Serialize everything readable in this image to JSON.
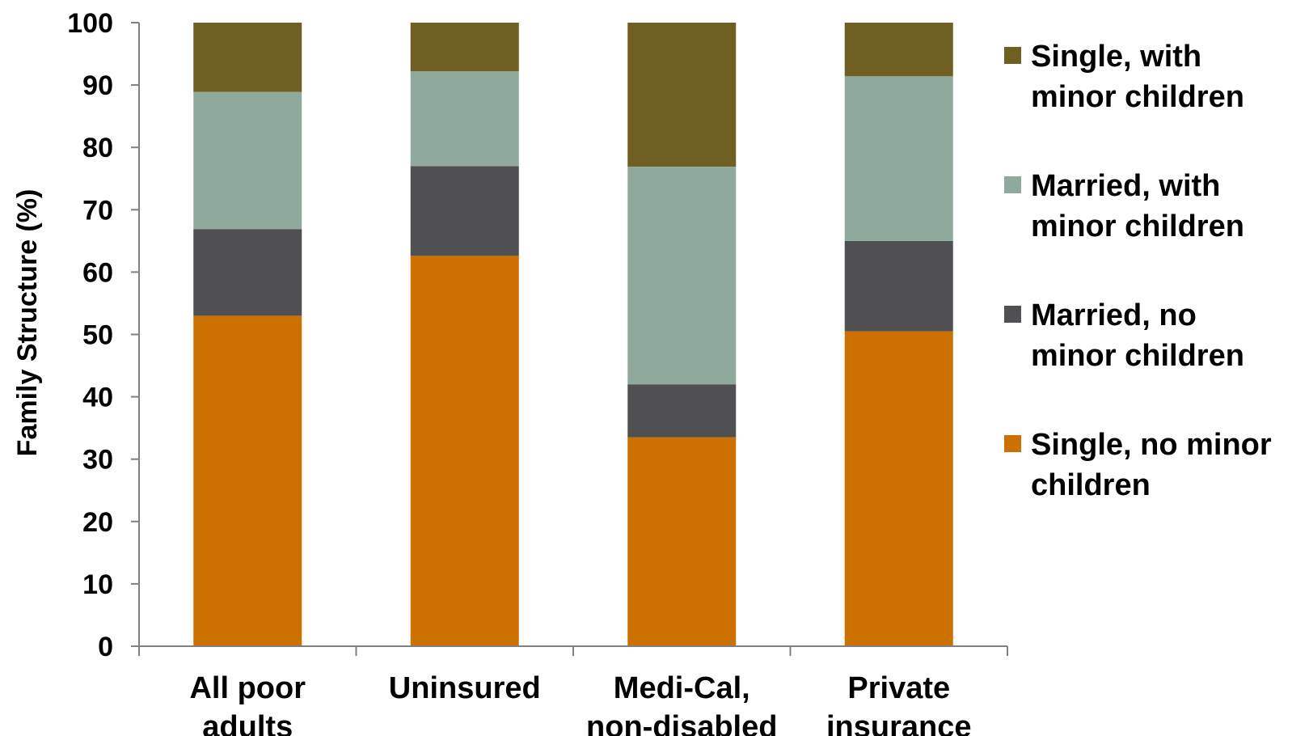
{
  "chart_data": {
    "type": "bar",
    "stacked": true,
    "title": "",
    "xlabel": "",
    "ylabel": "Family Structure (%)",
    "ylim": [
      0,
      100
    ],
    "yticks": [
      0,
      10,
      20,
      30,
      40,
      50,
      60,
      70,
      80,
      90,
      100
    ],
    "grid": false,
    "legend_position": "right",
    "categories": [
      [
        "All poor",
        "adults"
      ],
      [
        "Uninsured"
      ],
      [
        "Medi-Cal,",
        "non-disabled"
      ],
      [
        "Private",
        "insurance"
      ]
    ],
    "series": [
      {
        "name": [
          "Single, no minor",
          "children"
        ],
        "color": "#cc7000",
        "values": [
          53,
          62.6,
          33.5,
          50.5
        ]
      },
      {
        "name": [
          "Married, no",
          "minor children"
        ],
        "color": "#505052",
        "values": [
          13.9,
          14.4,
          8.5,
          14.5
        ]
      },
      {
        "name": [
          "Married, with",
          "minor children"
        ],
        "color": "#8faa9c",
        "values": [
          22,
          15.2,
          34.9,
          26.4
        ]
      },
      {
        "name": [
          "Single, with",
          "minor children"
        ],
        "color": "#705f23",
        "values": [
          11.1,
          7.8,
          23.1,
          8.6
        ]
      }
    ]
  }
}
